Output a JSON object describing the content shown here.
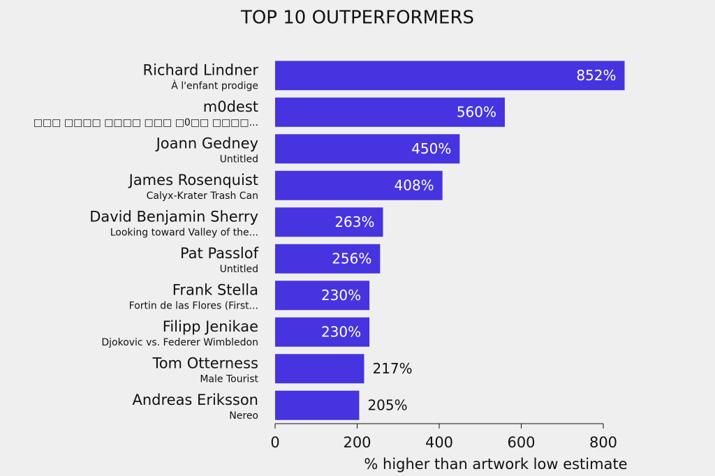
{
  "chart_data": {
    "type": "hbar",
    "title": "TOP 10 OUTPERFORMERS",
    "categories": [
      "Richard Lindner",
      "m0dest",
      "Joann Gedney",
      "James Rosenquist",
      "David Benjamin Sherry",
      "Pat Passlof",
      "Frank Stella",
      "Filipp Jenikae",
      "Tom Otterness",
      "Andreas Eriksson"
    ],
    "subtitles": [
      "À l'enfant prodige",
      "□□□ □□□□ □□□□ □□□ □0□□ □□□□...",
      "Untitled",
      "Calyx-Krater Trash Can",
      "Looking toward Valley of the...",
      "Untitled",
      "Fortin de las Flores (First...",
      "Djokovic vs. Federer Wimbledon",
      "Male Tourist",
      "Nereo"
    ],
    "values": [
      852,
      560,
      450,
      408,
      263,
      256,
      230,
      230,
      217,
      205
    ],
    "value_labels": [
      "852%",
      "560%",
      "450%",
      "408%",
      "263%",
      "256%",
      "230%",
      "230%",
      "217%",
      "205%"
    ],
    "color": "#4634e0",
    "xlabel": "% higher than artwork low estimate",
    "xlim": [
      0,
      800
    ],
    "xticks": [
      0,
      200,
      400,
      600,
      800
    ]
  }
}
